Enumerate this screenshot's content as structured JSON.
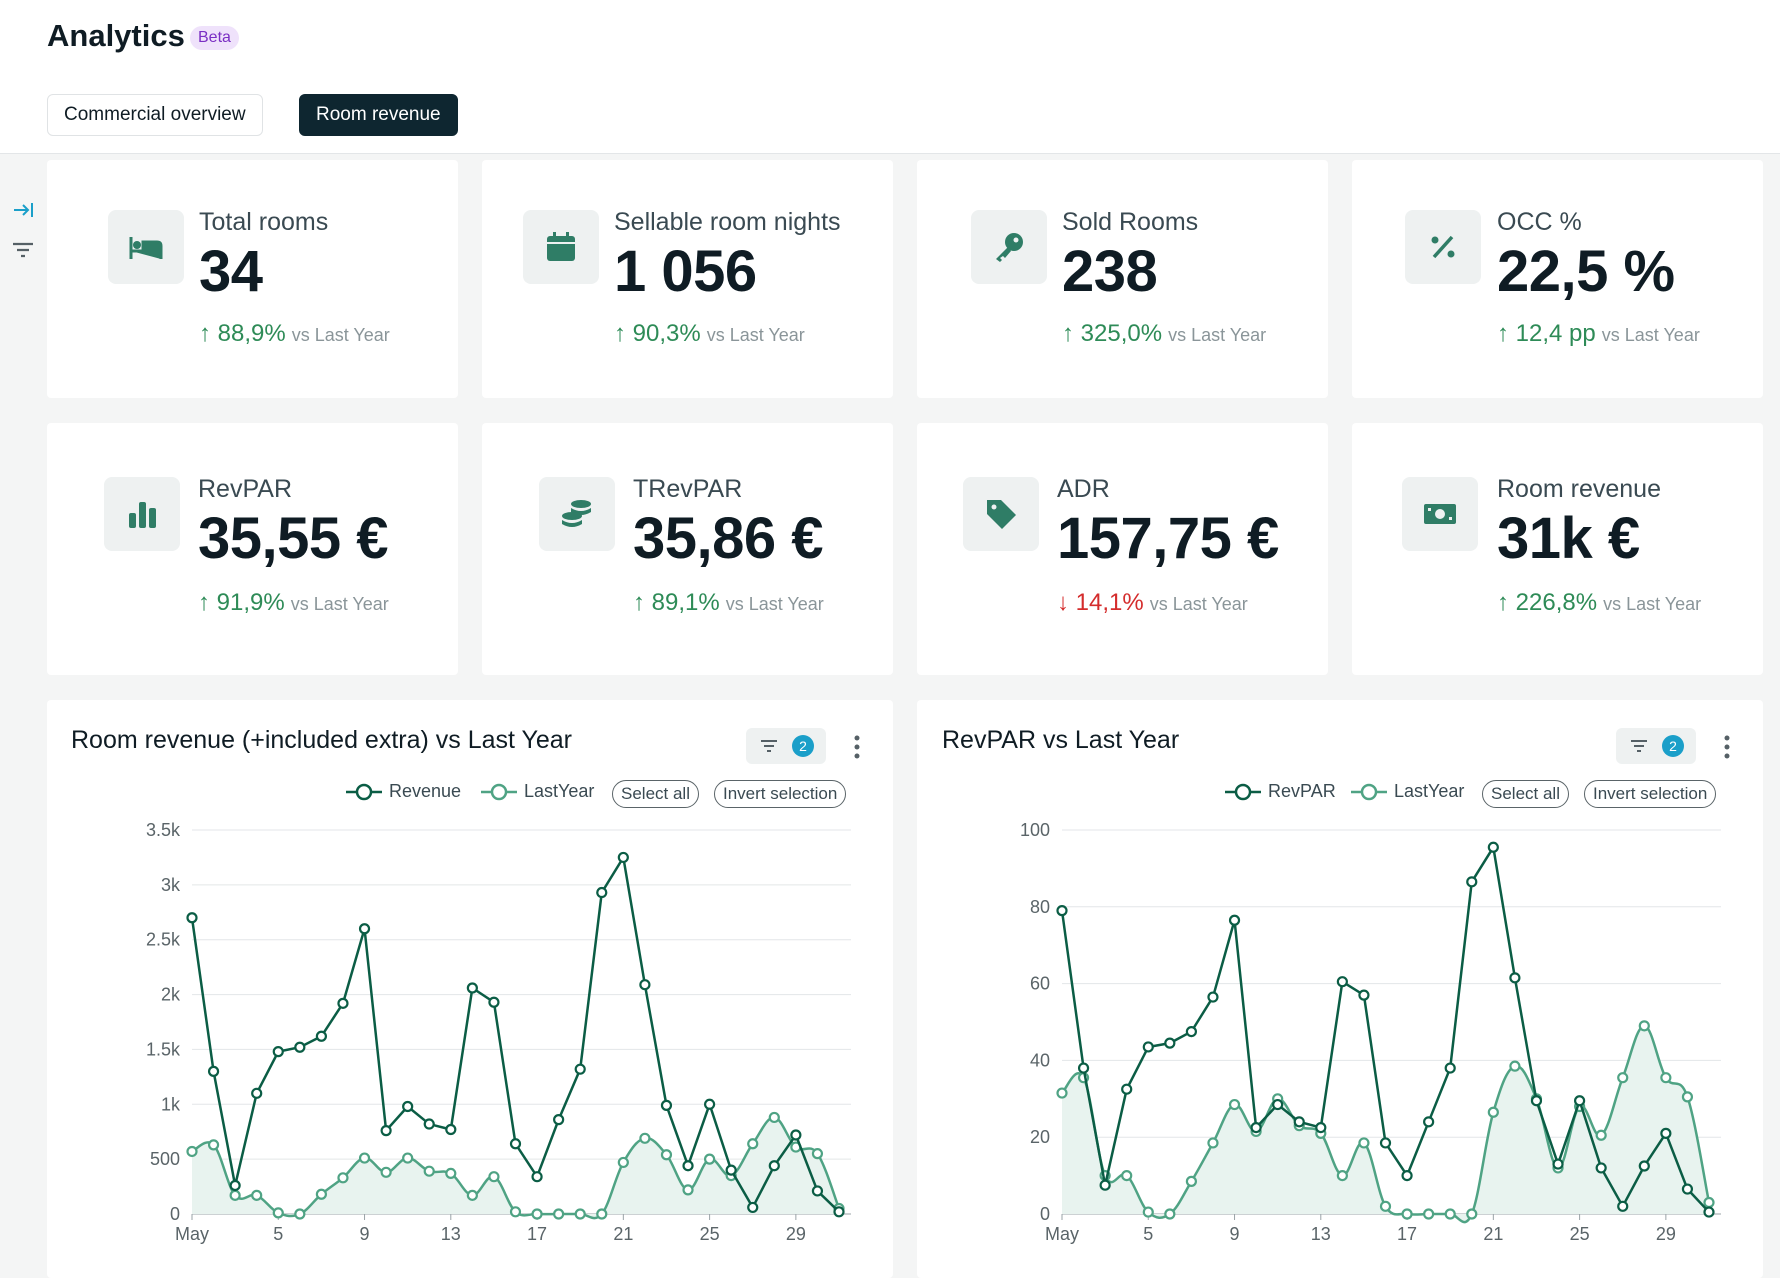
{
  "header": {
    "title": "Analytics",
    "badge": "Beta"
  },
  "tabs": [
    {
      "label": "Commercial overview",
      "active": false
    },
    {
      "label": "Room revenue",
      "active": true
    }
  ],
  "sidebar": {
    "icons": [
      "collapse-panel-icon",
      "filter-icon"
    ]
  },
  "kpis": [
    {
      "label": "Total rooms",
      "value": "34",
      "delta": "88,9%",
      "direction": "up",
      "vs": "vs Last Year",
      "icon": "bed-icon"
    },
    {
      "label": "Sellable room nights",
      "value": "1 056",
      "delta": "90,3%",
      "direction": "up",
      "vs": "vs Last Year",
      "icon": "calendar-icon"
    },
    {
      "label": "Sold Rooms",
      "value": "238",
      "delta": "325,0%",
      "direction": "up",
      "vs": "vs Last Year",
      "icon": "key-icon"
    },
    {
      "label": "OCC %",
      "value": "22,5 %",
      "delta": "12,4 pp",
      "direction": "up",
      "vs": "vs Last Year",
      "icon": "percent-icon"
    },
    {
      "label": "RevPAR",
      "value": "35,55 €",
      "delta": "91,9%",
      "direction": "up",
      "vs": "vs Last Year",
      "icon": "bar-chart-icon"
    },
    {
      "label": "TRevPAR",
      "value": "35,86 €",
      "delta": "89,1%",
      "direction": "up",
      "vs": "vs Last Year",
      "icon": "coins-icon"
    },
    {
      "label": "ADR",
      "value": "157,75 €",
      "delta": "14,1%",
      "direction": "down",
      "vs": "vs Last Year",
      "icon": "tag-icon"
    },
    {
      "label": "Room revenue",
      "value": "31k €",
      "delta": "226,8%",
      "direction": "up",
      "vs": "vs Last Year",
      "icon": "banknote-icon"
    }
  ],
  "charts_ui": [
    {
      "filter_count": "2",
      "select_all": "Select all",
      "invert_selection": "Invert selection"
    },
    {
      "filter_count": "2",
      "select_all": "Select all",
      "invert_selection": "Invert selection"
    }
  ],
  "colors": {
    "current": "#0b5d45",
    "last_year": "#4fa384",
    "area": "#e8f3ef",
    "up": "#2e8b57",
    "down": "#d42c2c"
  },
  "chart_data": [
    {
      "type": "line",
      "title": "Room revenue (+included extra) vs Last Year",
      "x": [
        "May",
        "2",
        "3",
        "4",
        "5",
        "6",
        "7",
        "8",
        "9",
        "10",
        "11",
        "12",
        "13",
        "14",
        "15",
        "16",
        "17",
        "18",
        "19",
        "20",
        "21",
        "22",
        "23",
        "24",
        "25",
        "26",
        "27",
        "28",
        "29",
        "30",
        "31"
      ],
      "x_tick_labels": [
        "May",
        "5",
        "9",
        "13",
        "17",
        "21",
        "25",
        "29"
      ],
      "y_tick_labels": [
        "0",
        "500",
        "1k",
        "1.5k",
        "2k",
        "2.5k",
        "3k",
        "3.5k"
      ],
      "ylim": [
        0,
        3500
      ],
      "grid": true,
      "legend_position": "top-right",
      "series": [
        {
          "name": "Revenue",
          "style": "straight",
          "values": [
            2700,
            1300,
            260,
            1100,
            1480,
            1520,
            1620,
            1920,
            2600,
            760,
            980,
            820,
            770,
            2060,
            1930,
            640,
            340,
            860,
            1320,
            2930,
            3250,
            2090,
            990,
            440,
            1000,
            400,
            60,
            440,
            720,
            210,
            20
          ]
        },
        {
          "name": "LastYear",
          "style": "smooth",
          "area": true,
          "values": [
            570,
            630,
            170,
            170,
            10,
            0,
            180,
            330,
            510,
            380,
            510,
            390,
            370,
            170,
            340,
            20,
            0,
            0,
            0,
            0,
            470,
            690,
            540,
            220,
            500,
            350,
            640,
            880,
            610,
            550,
            50
          ]
        }
      ]
    },
    {
      "type": "line",
      "title": "RevPAR vs Last Year",
      "x": [
        "May",
        "2",
        "3",
        "4",
        "5",
        "6",
        "7",
        "8",
        "9",
        "10",
        "11",
        "12",
        "13",
        "14",
        "15",
        "16",
        "17",
        "18",
        "19",
        "20",
        "21",
        "22",
        "23",
        "24",
        "25",
        "26",
        "27",
        "28",
        "29",
        "30",
        "31"
      ],
      "x_tick_labels": [
        "May",
        "5",
        "9",
        "13",
        "17",
        "21",
        "25",
        "29"
      ],
      "y_tick_labels": [
        "0",
        "20",
        "40",
        "60",
        "80",
        "100"
      ],
      "ylim": [
        0,
        100
      ],
      "grid": true,
      "legend_position": "top-right",
      "series": [
        {
          "name": "RevPAR",
          "style": "straight",
          "values": [
            79,
            38,
            7.5,
            32.5,
            43.5,
            44.5,
            47.5,
            56.5,
            76.5,
            22.5,
            28.5,
            24,
            22.5,
            60.5,
            57,
            18.5,
            10,
            24,
            38,
            86.5,
            95.5,
            61.5,
            29.5,
            13,
            29.5,
            12,
            2,
            12.5,
            21,
            6.5,
            0.5
          ]
        },
        {
          "name": "LastYear",
          "style": "smooth",
          "area": true,
          "values": [
            31.5,
            35.5,
            10,
            10,
            0.5,
            0,
            8.5,
            18.5,
            28.5,
            21.5,
            30,
            23,
            21,
            10,
            18.5,
            2,
            0,
            0,
            0,
            0,
            26.5,
            38.5,
            30,
            12,
            28,
            20.5,
            35.5,
            49,
            35.5,
            30.5,
            3
          ]
        }
      ]
    }
  ]
}
